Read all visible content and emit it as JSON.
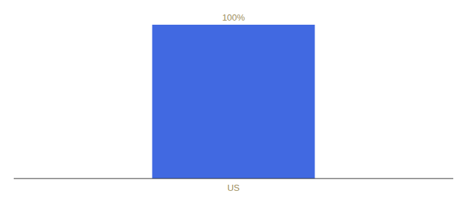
{
  "chart_data": {
    "type": "bar",
    "categories": [
      "US"
    ],
    "values": [
      100
    ],
    "value_labels": [
      "100%"
    ],
    "color": "#4169e1",
    "ylim": [
      0,
      100
    ],
    "data_labels": true,
    "tick_labels": "x"
  }
}
